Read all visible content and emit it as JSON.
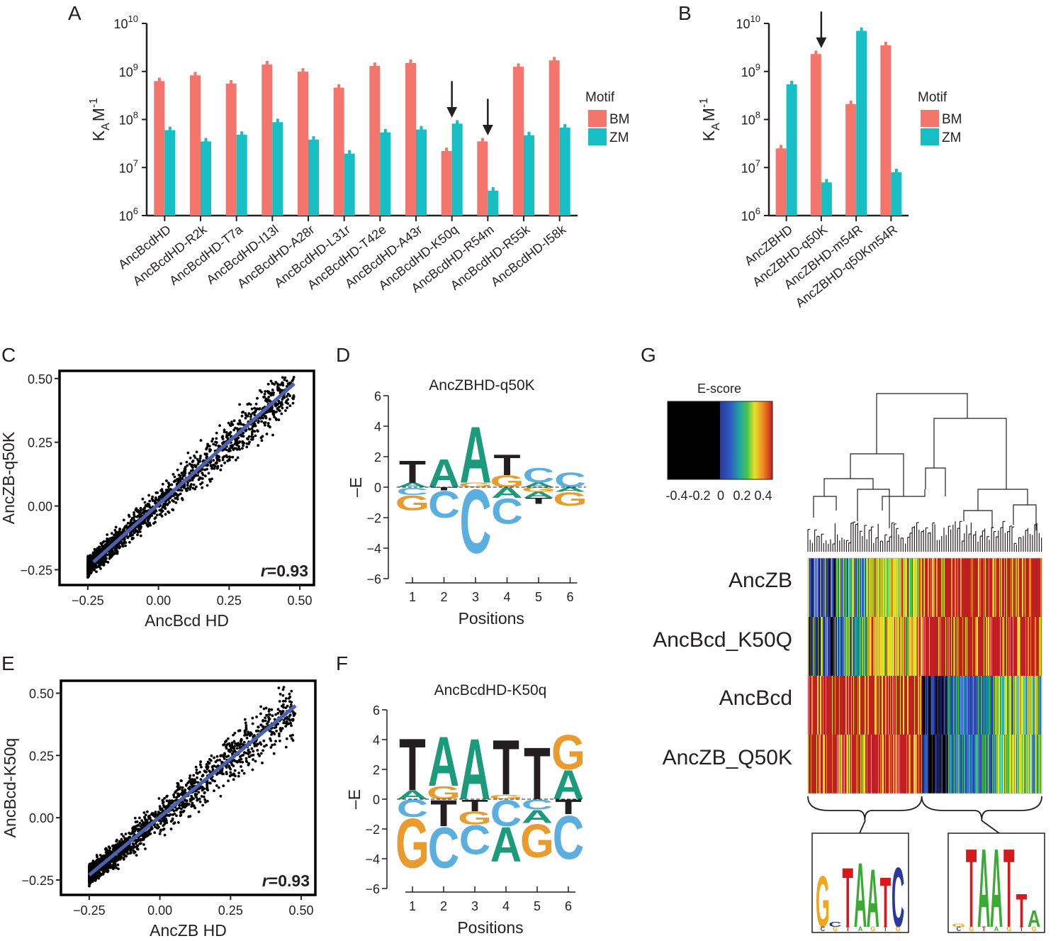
{
  "colors": {
    "bm": "#f4756b",
    "zm": "#17bfc5",
    "fit": "#4a62b0",
    "A": "#1b9b7c",
    "C": "#5aaee0",
    "G": "#e99c2d",
    "T": "#231f20"
  },
  "panel_labels": {
    "A": "A",
    "B": "B",
    "C": "C",
    "D": "D",
    "E": "E",
    "F": "F",
    "G": "G"
  },
  "chart_data": [
    {
      "panel": "A",
      "type": "bar",
      "scale": "log10",
      "ylabel_main": "K",
      "ylabel_sub": "A",
      "ylabel_unit": "M",
      "ylabel_sup": "-1",
      "ylim": [
        1000000,
        10000000000
      ],
      "yticks": [
        {
          "base": "10",
          "exp": "6"
        },
        {
          "base": "10",
          "exp": "7"
        },
        {
          "base": "10",
          "exp": "8"
        },
        {
          "base": "10",
          "exp": "9"
        },
        {
          "base": "10",
          "exp": "10"
        }
      ],
      "legend_title": "Motif",
      "categories": [
        "AncBcdHD",
        "AncBcdHD-R2k",
        "AncBcdHD-T7a",
        "AncBcdHD-I13l",
        "AncBcdHD-A28r",
        "AncBcdHD-L31r",
        "AncBcdHD-T42e",
        "AncBcdHD-A43r",
        "AncBcdHD-K50q",
        "AncBcdHD-R54m",
        "AncBcdHD-R55k",
        "AncBcdHD-I58k"
      ],
      "series": [
        {
          "name": "BM",
          "values": [
            630000000,
            830000000,
            560000000,
            1400000000,
            990000000,
            460000000,
            1300000000,
            1500000000,
            22000000,
            35000000,
            1250000000,
            1700000000
          ]
        },
        {
          "name": "ZM",
          "values": [
            60000000,
            35000000,
            48000000,
            88000000,
            38000000,
            19500000,
            54000000,
            62000000,
            82000000,
            3300000,
            47000000,
            68000000
          ]
        }
      ],
      "arrows": [
        "AncBcdHD-K50q",
        "AncBcdHD-R54m"
      ]
    },
    {
      "panel": "B",
      "type": "bar",
      "scale": "log10",
      "ylabel_main": "K",
      "ylabel_sub": "A",
      "ylabel_unit": "M",
      "ylabel_sup": "-1",
      "ylim": [
        1000000,
        10000000000
      ],
      "yticks": [
        {
          "base": "10",
          "exp": "6"
        },
        {
          "base": "10",
          "exp": "7"
        },
        {
          "base": "10",
          "exp": "8"
        },
        {
          "base": "10",
          "exp": "9"
        },
        {
          "base": "10",
          "exp": "10"
        }
      ],
      "legend_title": "Motif",
      "categories": [
        "AncZBHD",
        "AncZBHD-q50K",
        "AncZBHD-m54R",
        "AncZBHD-q50Km54R"
      ],
      "series": [
        {
          "name": "BM",
          "values": [
            25000000,
            2300000000,
            210000000,
            3500000000
          ]
        },
        {
          "name": "ZM",
          "values": [
            540000000,
            4900000,
            7000000000,
            8000000
          ]
        }
      ],
      "arrows": [
        "AncZBHD-q50K"
      ]
    },
    {
      "panel": "C",
      "type": "scatter",
      "xlabel": "AncBcd HD",
      "ylabel": "AncZB-q50K",
      "xlim": [
        -0.35,
        0.55
      ],
      "ylim": [
        -0.31,
        0.53
      ],
      "xticks": [
        "-0.25",
        "0.00",
        "0.25",
        "0.50"
      ],
      "yticks": [
        "-0.25",
        "0.00",
        "0.25",
        "0.50"
      ],
      "fit": {
        "x": [
          -0.23,
          0.48
        ],
        "y": [
          -0.22,
          0.48
        ]
      },
      "r_label": "r",
      "r_value": "=0.93",
      "x_range": [
        -0.25,
        0.48
      ],
      "spread": 0.04
    },
    {
      "panel": "E",
      "type": "scatter",
      "xlabel": "AncZB HD",
      "ylabel": "AncBcd-K50q",
      "xlim": [
        -0.35,
        0.55
      ],
      "ylim": [
        -0.31,
        0.55
      ],
      "xticks": [
        "-0.25",
        "0.00",
        "0.25",
        "0.50"
      ],
      "yticks": [
        "-0.25",
        "0.00",
        "0.25",
        "0.50"
      ],
      "fit": {
        "x": [
          -0.25,
          0.48
        ],
        "y": [
          -0.23,
          0.45
        ]
      },
      "r_label": "r",
      "r_value": "=0.93",
      "x_range": [
        -0.25,
        0.48
      ],
      "spread": 0.045
    },
    {
      "panel": "D",
      "type": "sequence-logo",
      "title": "AncZBHD-q50K",
      "xlabel": "Positions",
      "ylabel": "–E",
      "ylim": [
        -6,
        6
      ],
      "yticks": [
        "6",
        "4",
        "2",
        "0",
        "−2",
        "−4",
        "−6"
      ],
      "positions": [
        "1",
        "2",
        "3",
        "4",
        "5",
        "6"
      ],
      "columns": [
        {
          "up": [
            [
              "A",
              0.3
            ],
            [
              "T",
              1.5
            ]
          ],
          "down": [
            [
              "C",
              0.5
            ],
            [
              "G",
              1.0
            ]
          ]
        },
        {
          "up": [
            [
              "A",
              1.9
            ]
          ],
          "down": [
            [
              "T",
              0.2
            ],
            [
              "C",
              1.8
            ]
          ]
        },
        {
          "up": [
            [
              "G",
              0.3
            ],
            [
              "A",
              3.8
            ]
          ],
          "down": [
            [
              "C",
              4.3
            ]
          ]
        },
        {
          "up": [
            [
              "G",
              0.8
            ],
            [
              "T",
              1.4
            ]
          ],
          "down": [
            [
              "A",
              0.7
            ],
            [
              "C",
              1.7
            ]
          ]
        },
        {
          "up": [
            [
              "A",
              0.3
            ],
            [
              "C",
              1.0
            ]
          ],
          "down": [
            [
              "G",
              0.3
            ],
            [
              "A",
              0.4
            ],
            [
              "T",
              0.4
            ]
          ]
        },
        {
          "up": [
            [
              "C",
              1.0
            ]
          ],
          "down": [
            [
              "A",
              0.3
            ],
            [
              "G",
              0.9
            ]
          ]
        }
      ]
    },
    {
      "panel": "F",
      "type": "sequence-logo",
      "title": "AncBcdHD-K50q",
      "xlabel": "Positions",
      "ylabel": "–E",
      "ylim": [
        -6,
        6
      ],
      "yticks": [
        "6",
        "4",
        "2",
        "0",
        "−2",
        "−4",
        "−6"
      ],
      "positions": [
        "1",
        "2",
        "3",
        "4",
        "5",
        "6"
      ],
      "columns": [
        {
          "up": [
            [
              "A",
              0.6
            ],
            [
              "T",
              3.6
            ]
          ],
          "down": [
            [
              "C",
              1.2
            ],
            [
              "G",
              3.4
            ]
          ]
        },
        {
          "up": [
            [
              "G",
              0.9
            ],
            [
              "A",
              3.4
            ]
          ],
          "down": [
            [
              "T",
              1.8
            ],
            [
              "C",
              2.8
            ]
          ]
        },
        {
          "up": [
            [
              "A",
              4.2
            ]
          ],
          "down": [
            [
              "T",
              0.8
            ],
            [
              "G",
              0.9
            ],
            [
              "C",
              2.0
            ]
          ]
        },
        {
          "up": [
            [
              "G",
              0.3
            ],
            [
              "T",
              3.8
            ]
          ],
          "down": [
            [
              "C",
              1.8
            ],
            [
              "A",
              2.4
            ]
          ]
        },
        {
          "up": [
            [
              "T",
              3.6
            ]
          ],
          "down": [
            [
              "C",
              0.7
            ],
            [
              "A",
              0.9
            ],
            [
              "G",
              2.3
            ]
          ]
        },
        {
          "up": [
            [
              "A",
              2.0
            ],
            [
              "G",
              2.4
            ]
          ],
          "down": [
            [
              "T",
              1.0
            ],
            [
              "C",
              3.0
            ]
          ]
        }
      ]
    },
    {
      "panel": "G",
      "type": "heatmap",
      "colorbar_title": "E-score",
      "colorbar_ticks": [
        "-0.4",
        "-0.2",
        "0",
        "0.2",
        "0.4"
      ],
      "rows": [
        "AncZB",
        "AncBcd_K50Q",
        "AncBcd",
        "AncZB_Q50K"
      ],
      "column_groups": [
        "left cluster",
        "right cluster"
      ],
      "group_boundary_fraction": 0.487,
      "logos": [
        {
          "letters": [
            "G",
            "T",
            "A",
            "A",
            "T",
            "C"
          ]
        },
        {
          "letters": [
            "T",
            "A",
            "A",
            "T",
            "T",
            "A"
          ]
        }
      ]
    }
  ]
}
